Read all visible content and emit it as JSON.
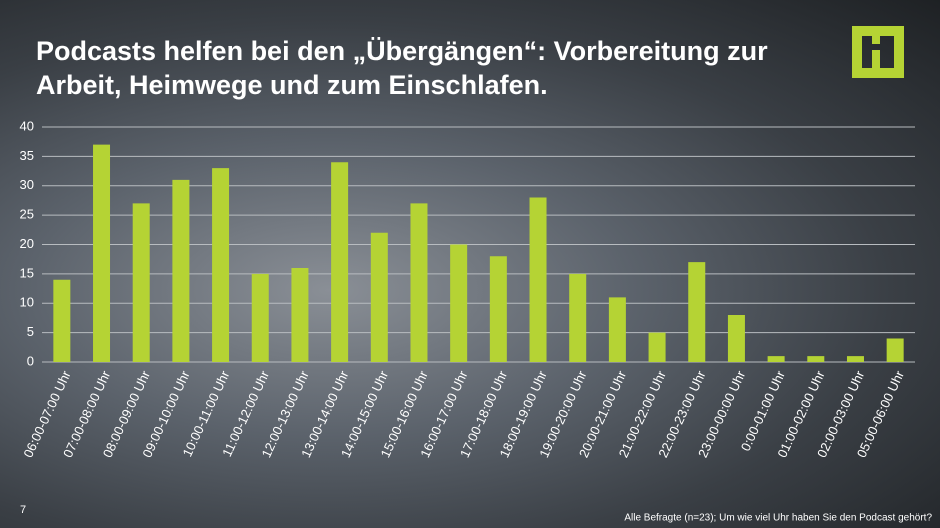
{
  "chart_data": {
    "type": "bar",
    "title": "Podcasts helfen bei den „Übergängen“: Vorbereitung zur Arbeit, Heimwege und zum Einschlafen.",
    "categories": [
      "06:00-07:00 Uhr",
      "07:00-08:00 Uhr",
      "08:00-09:00 Uhr",
      "09:00-10:00 Uhr",
      "10:00-11:00 Uhr",
      "11:00-12:00 Uhr",
      "12:00-13:00 Uhr",
      "13:00-14:00 Uhr",
      "14:00-15:00 Uhr",
      "15:00-16:00 Uhr",
      "16:00-17:00 Uhr",
      "17:00-18:00 Uhr",
      "18:00-19:00 Uhr",
      "19:00-20:00 Uhr",
      "20:00-21:00 Uhr",
      "21:00-22:00 Uhr",
      "22:00-23:00 Uhr",
      "23:00-00:00 Uhr",
      "0:00-01:00 Uhr",
      "01:00-02:00 Uhr",
      "02:00-03:00 Uhr",
      "05:00-06:00 Uhr"
    ],
    "values": [
      14,
      37,
      27,
      31,
      33,
      15,
      16,
      34,
      22,
      27,
      20,
      18,
      28,
      15,
      11,
      5,
      17,
      8,
      1,
      1,
      1,
      4
    ],
    "color": "#b5d334",
    "ylim": [
      0,
      40
    ],
    "yticks": [
      0,
      5,
      10,
      15,
      20,
      25,
      30,
      35,
      40
    ],
    "grid": true,
    "footnote": "Alle Befragte (n=23); Um wie viel Uhr haben Sie den Podcast gehört?",
    "page_number": "7"
  }
}
